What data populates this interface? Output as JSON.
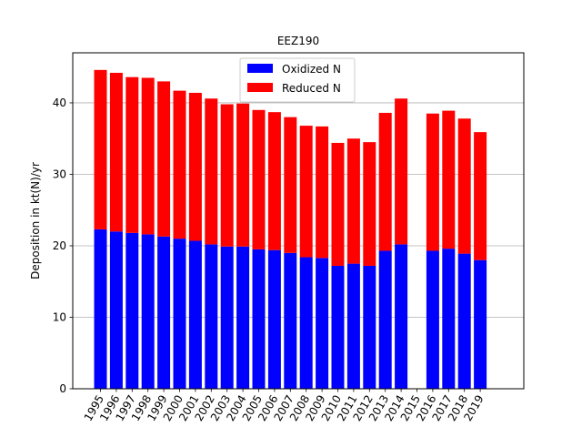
{
  "chart_data": {
    "type": "bar",
    "stacked": true,
    "title": "EEZ190",
    "xlabel": "",
    "ylabel": "Deposition in kt(N)/yr",
    "ylim": [
      0,
      47
    ],
    "yticks": [
      0,
      10,
      20,
      30,
      40
    ],
    "grid": "y",
    "legend_position": "top-center",
    "categories": [
      "1995",
      "1996",
      "1997",
      "1998",
      "1999",
      "2000",
      "2001",
      "2002",
      "2003",
      "2004",
      "2005",
      "2006",
      "2007",
      "2008",
      "2009",
      "2010",
      "2011",
      "2012",
      "2013",
      "2014",
      "2015",
      "2016",
      "2017",
      "2018",
      "2019"
    ],
    "series": [
      {
        "name": "Oxidized N",
        "color": "#0000ff",
        "values": [
          22.3,
          22.0,
          21.8,
          21.6,
          21.3,
          21.0,
          20.7,
          20.2,
          19.9,
          19.9,
          19.5,
          19.4,
          19.0,
          18.4,
          18.3,
          17.2,
          17.5,
          17.2,
          19.3,
          20.2,
          0,
          19.3,
          19.6,
          18.9,
          18.0
        ]
      },
      {
        "name": "Reduced N",
        "color": "#ff0000",
        "values": [
          22.3,
          22.2,
          21.8,
          21.9,
          21.7,
          20.7,
          20.7,
          20.4,
          19.9,
          20.0,
          19.5,
          19.3,
          19.0,
          18.4,
          18.4,
          17.2,
          17.5,
          17.3,
          19.3,
          20.4,
          0,
          19.2,
          19.3,
          18.9,
          17.9
        ]
      }
    ]
  }
}
